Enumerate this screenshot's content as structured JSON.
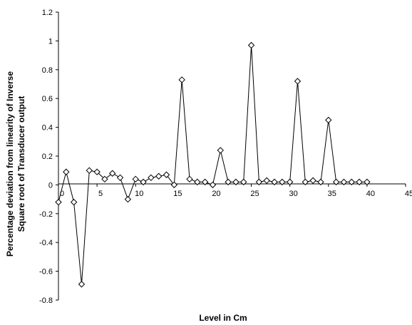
{
  "chart_data": {
    "type": "line",
    "title": "",
    "xlabel": "Level in Cm",
    "ylabel_lines": [
      "Percentage deviation from linearity of Inverse",
      "Square root of Transducer output"
    ],
    "xlim": [
      0,
      45
    ],
    "ylim": [
      -0.8,
      1.2
    ],
    "x_ticks": [
      0,
      5,
      10,
      15,
      20,
      25,
      30,
      35,
      40,
      45
    ],
    "y_ticks": [
      -0.8,
      -0.6,
      -0.4,
      -0.2,
      0,
      0.2,
      0.4,
      0.6,
      0.8,
      1,
      1.2
    ],
    "x_tick_labels": [
      "0",
      "5",
      "10",
      "15",
      "20",
      "25",
      "30",
      "35",
      "40",
      "45"
    ],
    "y_tick_labels": [
      "-0.8",
      "-0.6",
      "-0.4",
      "-0.2",
      "0",
      "0.2",
      "0.4",
      "0.6",
      "0.8",
      "1",
      "1.2"
    ],
    "marker": "diamond",
    "series": [
      {
        "x": [
          0,
          1,
          2,
          3,
          4,
          5,
          6,
          7,
          8,
          9,
          10,
          11,
          12,
          13,
          14,
          15,
          16,
          17,
          18,
          19,
          20,
          21,
          22,
          23,
          24,
          25,
          26,
          27,
          28,
          29,
          30,
          31,
          32,
          33,
          34,
          35,
          36,
          37,
          38,
          39,
          40
        ],
        "values": [
          -0.12,
          0.09,
          -0.12,
          -0.69,
          0.1,
          0.09,
          0.04,
          0.08,
          0.05,
          -0.1,
          0.04,
          0.02,
          0.05,
          0.06,
          0.07,
          0.0,
          0.73,
          0.04,
          0.02,
          0.02,
          0.0,
          0.24,
          0.02,
          0.02,
          0.02,
          0.97,
          0.02,
          0.03,
          0.02,
          0.02,
          0.02,
          0.72,
          0.02,
          0.03,
          0.02,
          0.45,
          0.02,
          0.02,
          0.02,
          0.02,
          0.02
        ]
      }
    ]
  }
}
